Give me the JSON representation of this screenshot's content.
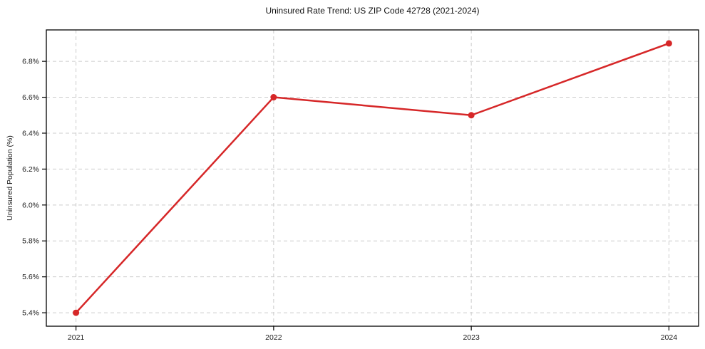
{
  "chart_data": {
    "type": "line",
    "title": "Uninsured Rate Trend: US ZIP Code 42728 (2021-2024)",
    "xlabel": "",
    "ylabel": "Uninsured Population (%)",
    "x": [
      2021,
      2022,
      2023,
      2024
    ],
    "series": [
      {
        "name": "Uninsured Population (%)",
        "values": [
          5.4,
          6.6,
          6.5,
          6.9
        ],
        "color": "#d62728",
        "marker": "circle"
      }
    ],
    "xticks": [
      2021,
      2022,
      2023,
      2024
    ],
    "xtick_labels": [
      "2021",
      "2022",
      "2023",
      "2024"
    ],
    "yticks": [
      5.4,
      5.6,
      5.8,
      6.0,
      6.2,
      6.4,
      6.6,
      6.8
    ],
    "ytick_labels": [
      "5.4%",
      "5.6%",
      "5.8%",
      "6.0%",
      "6.2%",
      "6.4%",
      "6.6%",
      "6.8%"
    ],
    "xlim": [
      2020.85,
      2024.15
    ],
    "ylim": [
      5.325,
      6.975
    ],
    "grid": true,
    "grid_style": "dashed",
    "grid_color": "#cccccc",
    "axis_color": "#000000",
    "legend": "none"
  }
}
